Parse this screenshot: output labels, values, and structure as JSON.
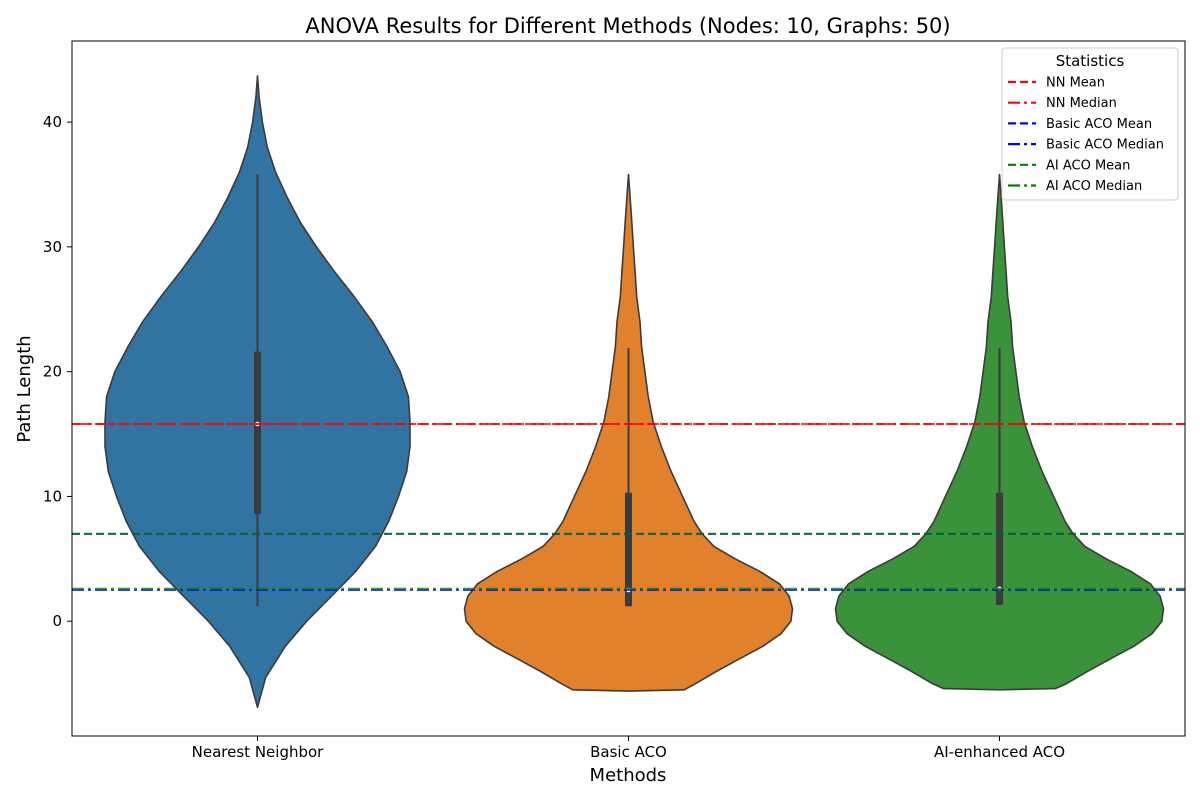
{
  "chart_data": {
    "type": "violin",
    "title": "ANOVA Results for Different Methods (Nodes: 10, Graphs: 50)",
    "xlabel": "Methods",
    "ylabel": "Path Length",
    "ylim": [
      -9.2,
      46.5
    ],
    "yticks": [
      0,
      10,
      20,
      30,
      40
    ],
    "categories": [
      "Nearest Neighbor",
      "Basic ACO",
      "AI-enhanced ACO"
    ],
    "colors": [
      "#3274a1",
      "#e1812c",
      "#3a923a"
    ],
    "violins": [
      {
        "name": "Nearest Neighbor",
        "min": 1.2,
        "q1": 8.6,
        "median": 15.8,
        "q3": 21.6,
        "max": 35.8,
        "density": [
          [
            -6.9,
            0.0
          ],
          [
            -4.5,
            0.05
          ],
          [
            -2.0,
            0.17
          ],
          [
            0.0,
            0.3
          ],
          [
            2.0,
            0.45
          ],
          [
            4.0,
            0.6
          ],
          [
            6.0,
            0.72
          ],
          [
            8.0,
            0.8
          ],
          [
            10.0,
            0.86
          ],
          [
            12.0,
            0.91
          ],
          [
            14.0,
            0.93
          ],
          [
            16.0,
            0.93
          ],
          [
            18.0,
            0.92
          ],
          [
            20.0,
            0.87
          ],
          [
            22.0,
            0.79
          ],
          [
            24.0,
            0.7
          ],
          [
            26.0,
            0.59
          ],
          [
            28.0,
            0.47
          ],
          [
            30.0,
            0.36
          ],
          [
            32.0,
            0.26
          ],
          [
            34.0,
            0.18
          ],
          [
            36.0,
            0.11
          ],
          [
            38.0,
            0.06
          ],
          [
            40.0,
            0.03
          ],
          [
            42.0,
            0.01
          ],
          [
            43.7,
            0.0
          ]
        ]
      },
      {
        "name": "Basic ACO",
        "min": 1.2,
        "q1": 1.2,
        "median": 2.5,
        "q3": 10.3,
        "max": 21.9,
        "density": [
          [
            -5.6,
            0.0
          ],
          [
            -5.5,
            0.34
          ],
          [
            -5.0,
            0.41
          ],
          [
            -4.0,
            0.54
          ],
          [
            -3.0,
            0.68
          ],
          [
            -2.0,
            0.82
          ],
          [
            -1.0,
            0.93
          ],
          [
            0.0,
            0.99
          ],
          [
            1.0,
            1.0
          ],
          [
            2.0,
            0.98
          ],
          [
            3.0,
            0.92
          ],
          [
            4.0,
            0.8
          ],
          [
            5.0,
            0.65
          ],
          [
            6.0,
            0.52
          ],
          [
            7.0,
            0.45
          ],
          [
            8.0,
            0.4
          ],
          [
            10.0,
            0.33
          ],
          [
            12.0,
            0.26
          ],
          [
            14.0,
            0.2
          ],
          [
            16.0,
            0.15
          ],
          [
            18.0,
            0.12
          ],
          [
            20.0,
            0.1
          ],
          [
            22.0,
            0.08
          ],
          [
            24.0,
            0.07
          ],
          [
            26.0,
            0.05
          ],
          [
            28.0,
            0.04
          ],
          [
            30.0,
            0.03
          ],
          [
            32.0,
            0.02
          ],
          [
            34.0,
            0.01
          ],
          [
            35.8,
            0.0
          ]
        ]
      },
      {
        "name": "AI-enhanced ACO",
        "min": 1.3,
        "q1": 1.3,
        "median": 2.6,
        "q3": 10.3,
        "max": 21.9,
        "density": [
          [
            -5.5,
            0.0
          ],
          [
            -5.4,
            0.34
          ],
          [
            -5.0,
            0.41
          ],
          [
            -4.0,
            0.54
          ],
          [
            -3.0,
            0.68
          ],
          [
            -2.0,
            0.82
          ],
          [
            -1.0,
            0.93
          ],
          [
            0.0,
            0.99
          ],
          [
            1.0,
            1.0
          ],
          [
            2.0,
            0.98
          ],
          [
            3.0,
            0.92
          ],
          [
            4.0,
            0.8
          ],
          [
            5.0,
            0.65
          ],
          [
            6.0,
            0.52
          ],
          [
            7.0,
            0.45
          ],
          [
            8.0,
            0.4
          ],
          [
            10.0,
            0.33
          ],
          [
            12.0,
            0.26
          ],
          [
            14.0,
            0.2
          ],
          [
            16.0,
            0.15
          ],
          [
            18.0,
            0.12
          ],
          [
            20.0,
            0.1
          ],
          [
            22.0,
            0.08
          ],
          [
            24.0,
            0.07
          ],
          [
            26.0,
            0.05
          ],
          [
            28.0,
            0.04
          ],
          [
            30.0,
            0.03
          ],
          [
            32.0,
            0.02
          ],
          [
            34.0,
            0.01
          ],
          [
            35.8,
            0.0
          ]
        ]
      }
    ],
    "reference_lines": [
      {
        "label": "NN Mean",
        "y": 15.8,
        "color": "#ff0000",
        "style": "dashed"
      },
      {
        "label": "NN Median",
        "y": 15.8,
        "color": "#ff0000",
        "style": "dashdot"
      },
      {
        "label": "Basic ACO Mean",
        "y": 7.0,
        "color": "#0000ff",
        "style": "dashed"
      },
      {
        "label": "Basic ACO Median",
        "y": 2.5,
        "color": "#0000ff",
        "style": "dashdot"
      },
      {
        "label": "AI ACO Mean",
        "y": 7.0,
        "color": "#008000",
        "style": "dashed"
      },
      {
        "label": "AI ACO Median",
        "y": 2.6,
        "color": "#008000",
        "style": "dashdot"
      }
    ],
    "legend": {
      "title": "Statistics",
      "position": "top-right"
    },
    "grid": false
  }
}
